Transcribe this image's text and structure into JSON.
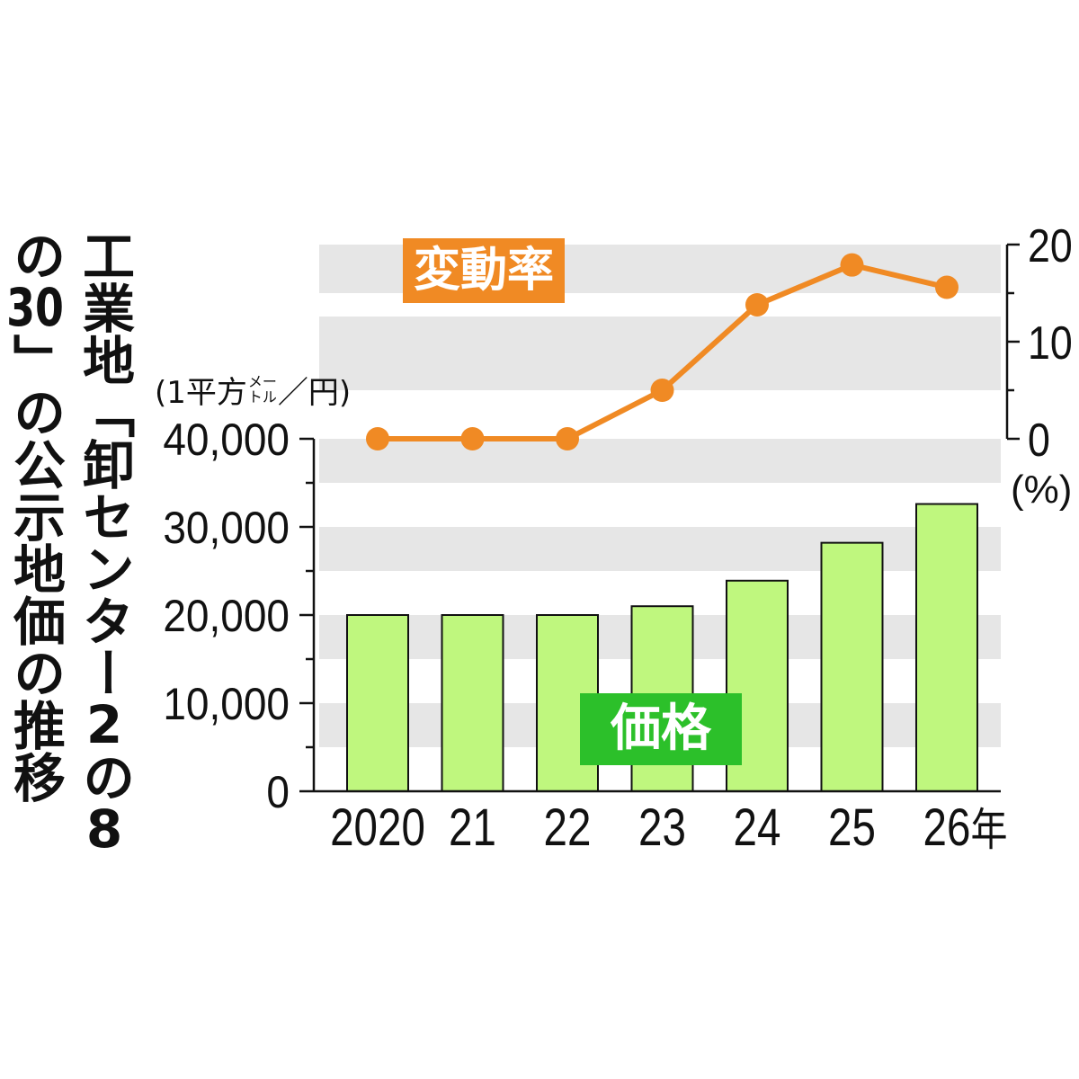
{
  "chart_data": {
    "type": "bar",
    "title": "工業地「卸センター2の8の30」の公示地価の推移",
    "categories": [
      "2020",
      "21",
      "22",
      "23",
      "24",
      "25",
      "26年"
    ],
    "series": [
      {
        "name": "価格",
        "type": "bar",
        "axis": "left",
        "values": [
          20000,
          20000,
          20000,
          21000,
          23900,
          28200,
          32600
        ]
      },
      {
        "name": "変動率",
        "type": "line",
        "axis": "right",
        "values": [
          0,
          0,
          0,
          5.0,
          13.8,
          17.9,
          15.6
        ]
      }
    ],
    "xlabel": "",
    "ylabel": {
      "prefix": "(1平方",
      "unit_stacked": [
        "メー",
        "トル"
      ],
      "suffix": "／円)"
    },
    "ylabel_right": "(%)",
    "yticks_left": [
      "0",
      "10,000",
      "20,000",
      "30,000",
      "40,000"
    ],
    "yticks_right": [
      "0",
      "10",
      "20"
    ],
    "ylim_left": [
      0,
      40000
    ],
    "ylim_right": [
      0,
      20
    ],
    "grid": true,
    "colors": {
      "bars": "#bff77e",
      "bar_edge": "#111111",
      "line": "#f08a24",
      "rate_label_bg": "#f08a24",
      "price_label_bg": "#2cc02a",
      "bands": "#e6e6e6"
    }
  }
}
